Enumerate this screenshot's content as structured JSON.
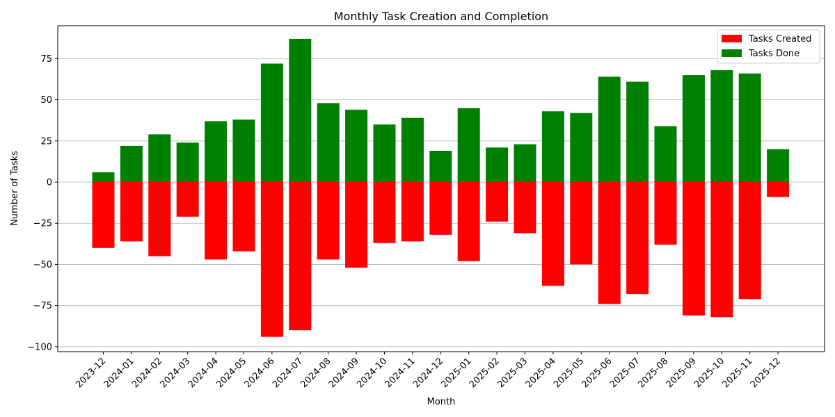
{
  "chart_data": {
    "type": "bar",
    "title": "Monthly Task Creation and Completion",
    "xlabel": "Month",
    "ylabel": "Number of Tasks",
    "ylim": [
      -103,
      95
    ],
    "yticks": [
      -100,
      -75,
      -50,
      -25,
      0,
      25,
      50,
      75
    ],
    "grid": "horizontal",
    "legend_position": "top-right",
    "categories": [
      "2023-12",
      "2024-01",
      "2024-02",
      "2024-03",
      "2024-04",
      "2024-05",
      "2024-06",
      "2024-07",
      "2024-08",
      "2024-09",
      "2024-10",
      "2024-11",
      "2024-12",
      "2025-01",
      "2025-02",
      "2025-03",
      "2025-04",
      "2025-05",
      "2025-06",
      "2025-07",
      "2025-08",
      "2025-09",
      "2025-10",
      "2025-11",
      "2025-12"
    ],
    "series": [
      {
        "name": "Tasks Created",
        "color": "#ff0000",
        "values": [
          -40,
          -36,
          -45,
          -21,
          -47,
          -42,
          -94,
          -90,
          -47,
          -52,
          -37,
          -36,
          -32,
          -48,
          -24,
          -31,
          -63,
          -50,
          -74,
          -68,
          -38,
          -81,
          -82,
          -71,
          -9
        ]
      },
      {
        "name": "Tasks Done",
        "color": "#008000",
        "values": [
          6,
          22,
          29,
          24,
          37,
          38,
          72,
          87,
          48,
          44,
          35,
          39,
          19,
          45,
          21,
          23,
          43,
          42,
          64,
          61,
          34,
          65,
          68,
          66,
          20
        ]
      }
    ]
  }
}
